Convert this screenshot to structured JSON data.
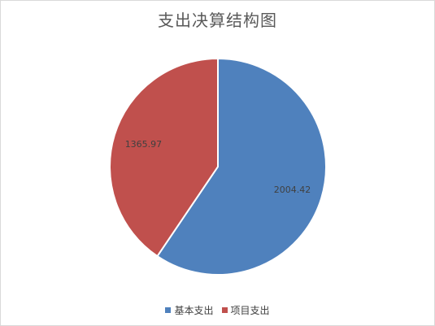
{
  "chart_data": {
    "type": "pie",
    "title": "支出决算结构图",
    "categories": [
      "基本支出",
      "项目支出"
    ],
    "values": [
      2004.42,
      1365.97
    ],
    "data_labels": [
      "2004.42",
      "1365.97"
    ],
    "colors": [
      "#4f81bd",
      "#c0504d"
    ],
    "legend_position": "bottom"
  }
}
